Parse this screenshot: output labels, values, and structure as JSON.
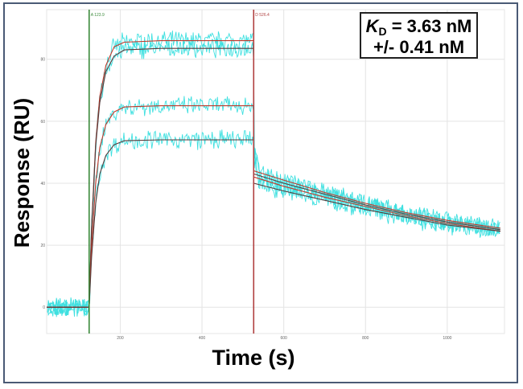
{
  "chart_data": {
    "type": "line",
    "xlabel": "Time (s)",
    "ylabel": "Response (RU)",
    "xticks": [
      200,
      400,
      600,
      800,
      1000
    ],
    "yticks": [
      0,
      20,
      40,
      60,
      80
    ],
    "xlim": [
      20,
      1140
    ],
    "ylim": [
      -8.5,
      96
    ],
    "grid": true,
    "markers": [
      {
        "label": "A 123.9",
        "x": 123.9,
        "color": "#3a8a3a"
      },
      {
        "label": "D 526.4",
        "x": 526.4,
        "color": "#b04040"
      }
    ],
    "annotation": {
      "line1_symbol": "K",
      "line1_sub": "D",
      "line1_value": " = 3.63 nM",
      "line2": "+/- 0.41 nM"
    },
    "colors": {
      "measured": "#3fe0e0",
      "fit_a": "#c0392b",
      "fit_b": "#5a3a3a"
    },
    "x": [
      20,
      123.9,
      129.9,
      139.9,
      149.9,
      164.9,
      184.9,
      209.9,
      300,
      526.4,
      526.4,
      600,
      700,
      800,
      900,
      1000,
      1130
    ],
    "series": [
      {
        "values": [
          0,
          0,
          26,
          53,
          68,
          78,
          84,
          85.5,
          86,
          86,
          44,
          41,
          37,
          33.5,
          30.5,
          28,
          25.5
        ]
      },
      {
        "values": [
          0,
          0,
          25,
          52,
          66,
          76,
          81,
          83,
          83.5,
          83.5,
          43,
          40,
          36.5,
          33,
          30,
          27.5,
          25
        ]
      },
      {
        "values": [
          0,
          0,
          19.5,
          40,
          51.5,
          59,
          63,
          64.6,
          65,
          65,
          42,
          39,
          35.5,
          32.5,
          29.5,
          27,
          24.5
        ]
      },
      {
        "values": [
          0,
          0,
          16,
          33.5,
          43,
          49,
          52.4,
          53.7,
          54,
          54,
          40,
          37.5,
          34.5,
          31.5,
          29,
          26.5,
          24.5
        ]
      }
    ]
  }
}
